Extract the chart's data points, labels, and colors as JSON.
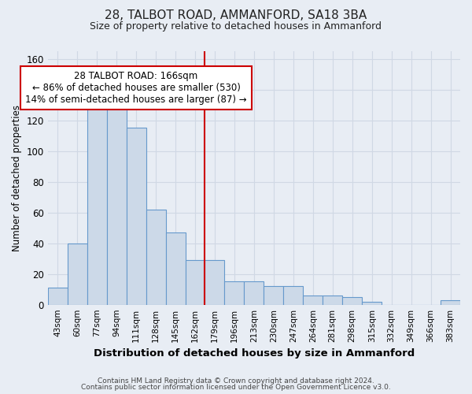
{
  "title": "28, TALBOT ROAD, AMMANFORD, SA18 3BA",
  "subtitle": "Size of property relative to detached houses in Ammanford",
  "xlabel": "Distribution of detached houses by size in Ammanford",
  "ylabel": "Number of detached properties",
  "categories": [
    "43sqm",
    "60sqm",
    "77sqm",
    "94sqm",
    "111sqm",
    "128sqm",
    "145sqm",
    "162sqm",
    "179sqm",
    "196sqm",
    "213sqm",
    "230sqm",
    "247sqm",
    "264sqm",
    "281sqm",
    "298sqm",
    "315sqm",
    "332sqm",
    "349sqm",
    "366sqm",
    "383sqm"
  ],
  "values": [
    11,
    40,
    128,
    128,
    115,
    62,
    47,
    29,
    29,
    15,
    15,
    12,
    12,
    6,
    6,
    5,
    2,
    0,
    0,
    0,
    3
  ],
  "bar_color": "#ccd9e8",
  "bar_edge_color": "#6699cc",
  "marker_bin_index": 7,
  "marker_color": "#cc0000",
  "annotation_line1": "28 TALBOT ROAD: 166sqm",
  "annotation_line2": "← 86% of detached houses are smaller (530)",
  "annotation_line3": "14% of semi-detached houses are larger (87) →",
  "annotation_box_color": "#ffffff",
  "annotation_box_edge_color": "#cc0000",
  "ylim_max": 165,
  "yticks": [
    0,
    20,
    40,
    60,
    80,
    100,
    120,
    140,
    160
  ],
  "background_color": "#e8edf4",
  "grid_color": "#d0d8e4",
  "footer_line1": "Contains HM Land Registry data © Crown copyright and database right 2024.",
  "footer_line2": "Contains public sector information licensed under the Open Government Licence v3.0."
}
